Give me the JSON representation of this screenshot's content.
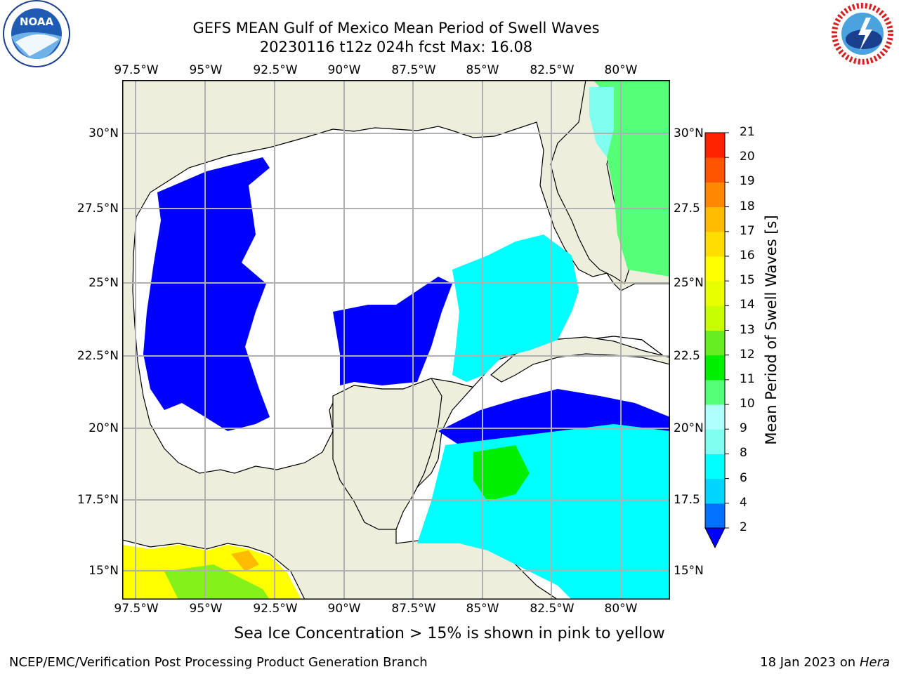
{
  "header": {
    "title_line1": "GEFS MEAN Gulf of Mexico Mean Period of Swell Waves",
    "title_line2": "20230116 t12z 024h fcst   Max: 16.08"
  },
  "logos": {
    "noaa": {
      "text": "NOAA",
      "ring_text": "NATIONAL OCEANIC AND ATMOSPHERIC ADMINISTRATION · U.S. DEPARTMENT OF COMMERCE"
    },
    "nws": {
      "ring_text": "NATIONAL WEATHER SERVICE"
    }
  },
  "map": {
    "lon_labels": [
      "97.5°W",
      "95°W",
      "92.5°W",
      "90°W",
      "87.5°W",
      "85°W",
      "82.5°W",
      "80°W"
    ],
    "lat_labels_left": [
      "30°N",
      "27.5°N",
      "25°N",
      "22.5°N",
      "20°N",
      "17.5°N",
      "15°N"
    ],
    "lat_labels_right": [
      "30°N",
      "27.5",
      "25°N",
      "22.5",
      "20°N",
      "17.5",
      "15°N"
    ],
    "colors": {
      "land": "#eeeedd",
      "ocean_calm": "#ffffff",
      "grid": "#b0b0b0",
      "coast": "#000000"
    }
  },
  "colorbar": {
    "label": "Mean Period of Swell Waves [s]",
    "ticks": [
      "2",
      "4",
      "6",
      "8",
      "9",
      "10",
      "11",
      "12",
      "13",
      "14",
      "15",
      "16",
      "17",
      "18",
      "19",
      "20",
      "21"
    ],
    "colors": [
      "#0072ff",
      "#00d5ff",
      "#00ffff",
      "#80fff0",
      "#b0ffff",
      "#55ff77",
      "#00ee00",
      "#66ee22",
      "#c8ff00",
      "#e8ff00",
      "#ffff00",
      "#ffdd00",
      "#ffbb00",
      "#ff8800",
      "#ff5500",
      "#ff2200"
    ],
    "under_color": "#0000ff"
  },
  "caption": "Sea Ice Concentration > 15% is shown in pink to yellow",
  "footer": {
    "left": "NCEP/EMC/Verification Post Processing Product Generation Branch",
    "right_date": "18 Jan 2023 on ",
    "right_host": "Hera"
  }
}
